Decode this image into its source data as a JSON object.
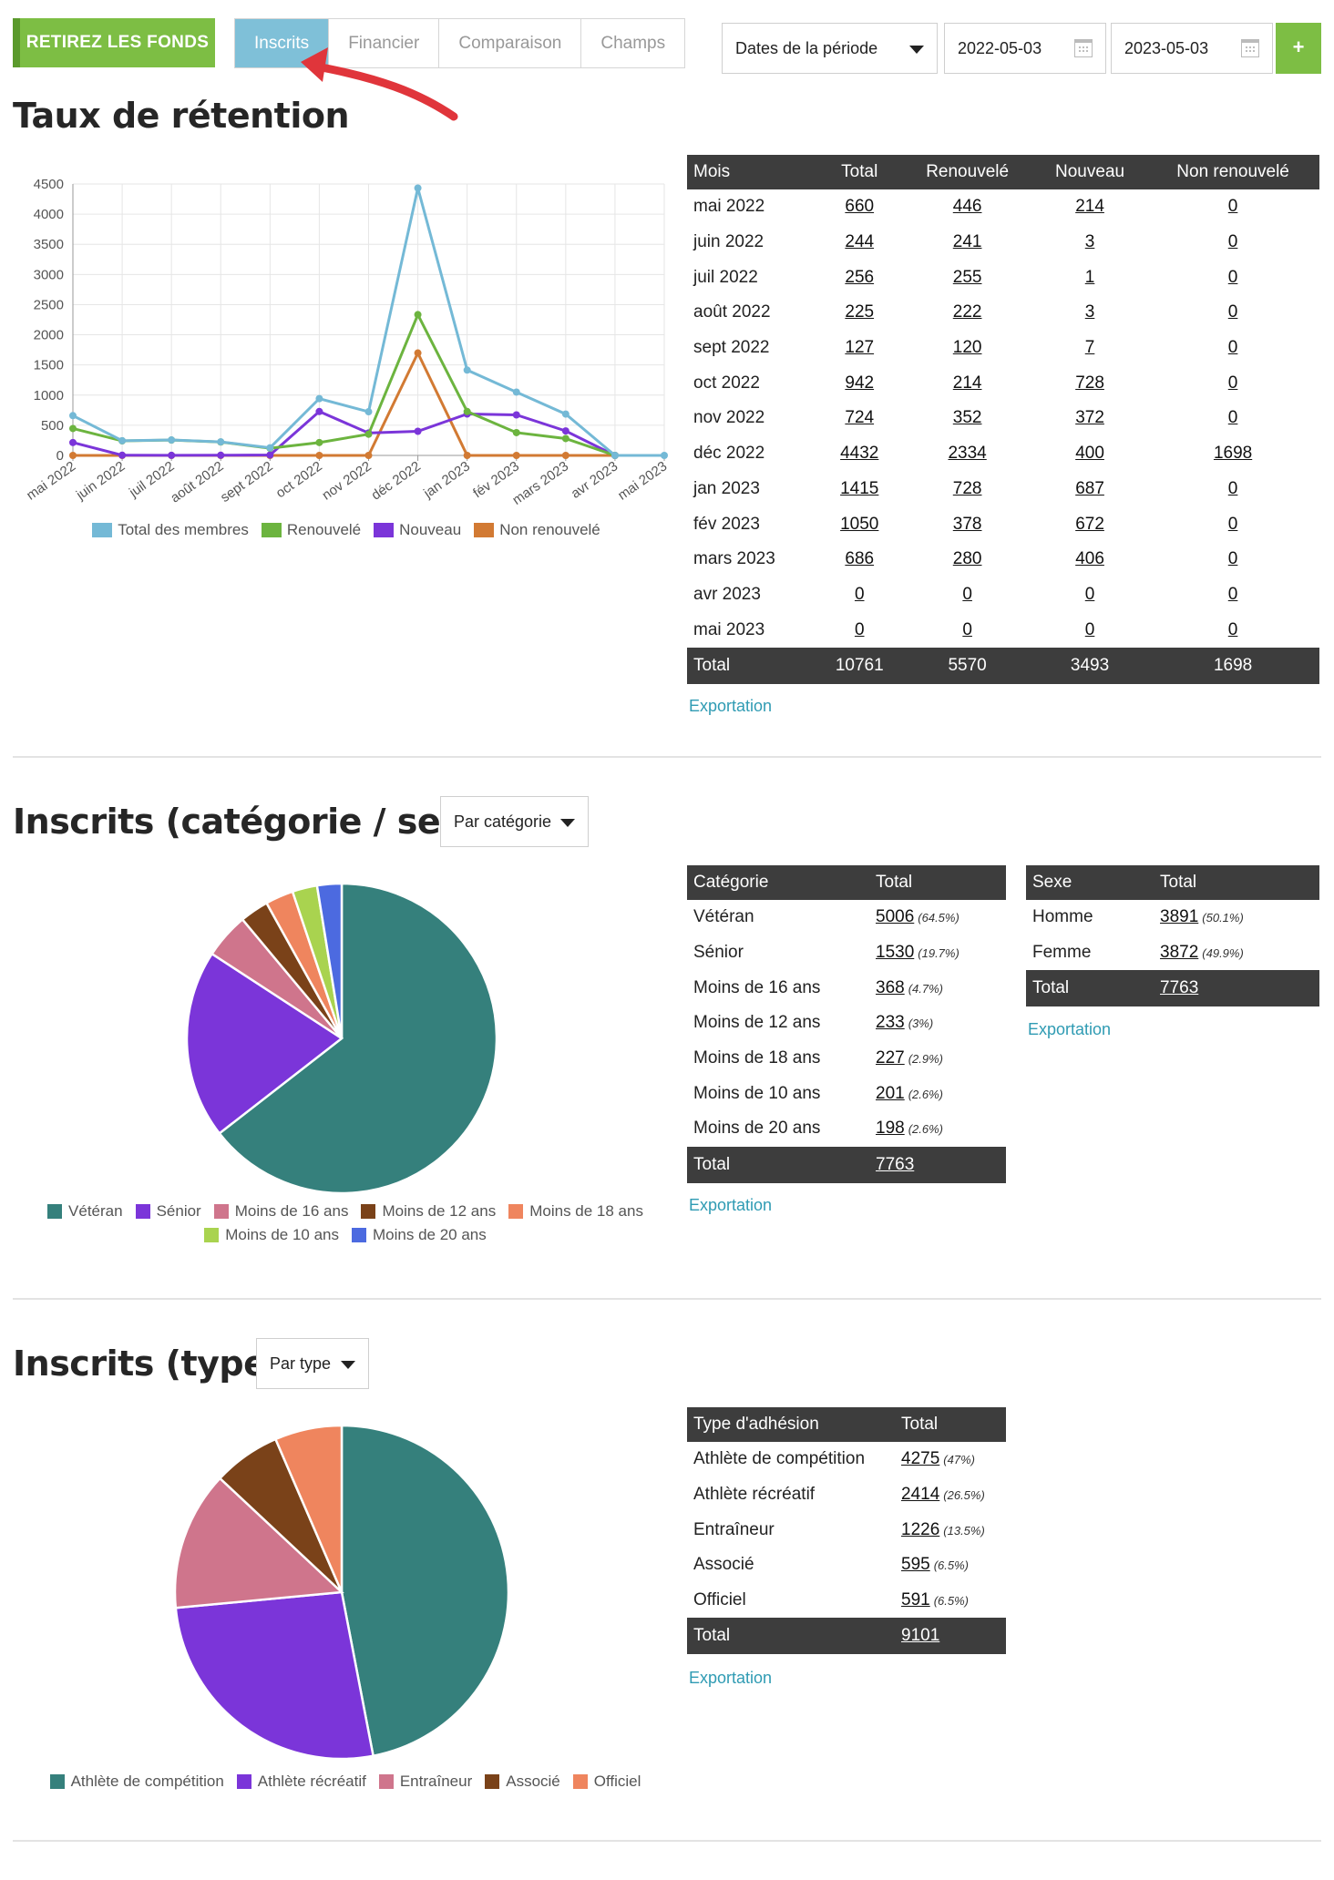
{
  "topbar": {
    "withdraw_label": "RETIREZ LES FONDS",
    "tabs": [
      {
        "label": "Inscrits",
        "active": true
      },
      {
        "label": "Financier",
        "active": false
      },
      {
        "label": "Comparaison",
        "active": false
      },
      {
        "label": "Champs",
        "active": false
      }
    ],
    "period_label": "Dates de la période",
    "date_start": "2022-05-03",
    "date_end": "2023-05-03",
    "add_label": "+"
  },
  "colors": {
    "green": "#7dbe44",
    "tab_active": "#7fc0d8",
    "header_dark": "#3d3d3d",
    "link": "#2f9bb3",
    "arrow": "#e0353b"
  },
  "retention": {
    "title": "Taux de rétention",
    "headers": [
      "Mois",
      "Total",
      "Renouvelé",
      "Nouveau",
      "Non renouvelé"
    ],
    "rows": [
      [
        "mai 2022",
        "660",
        "446",
        "214",
        "0"
      ],
      [
        "juin 2022",
        "244",
        "241",
        "3",
        "0"
      ],
      [
        "juil 2022",
        "256",
        "255",
        "1",
        "0"
      ],
      [
        "août 2022",
        "225",
        "222",
        "3",
        "0"
      ],
      [
        "sept 2022",
        "127",
        "120",
        "7",
        "0"
      ],
      [
        "oct 2022",
        "942",
        "214",
        "728",
        "0"
      ],
      [
        "nov 2022",
        "724",
        "352",
        "372",
        "0"
      ],
      [
        "déc 2022",
        "4432",
        "2334",
        "400",
        "1698"
      ],
      [
        "jan 2023",
        "1415",
        "728",
        "687",
        "0"
      ],
      [
        "fév 2023",
        "1050",
        "378",
        "672",
        "0"
      ],
      [
        "mars 2023",
        "686",
        "280",
        "406",
        "0"
      ],
      [
        "avr 2023",
        "0",
        "0",
        "0",
        "0"
      ],
      [
        "mai 2023",
        "0",
        "0",
        "0",
        "0"
      ]
    ],
    "total": [
      "Total",
      "10761",
      "5570",
      "3493",
      "1698"
    ],
    "export_label": "Exportation"
  },
  "category": {
    "title": "Inscrits (catégorie / sexe)",
    "dropdown": "Par catégorie",
    "headers": [
      "Catégorie",
      "Total"
    ],
    "rows": [
      {
        "label": "Vétéran",
        "value": "5006",
        "pct": "(64.5%)"
      },
      {
        "label": "Sénior",
        "value": "1530",
        "pct": "(19.7%)"
      },
      {
        "label": "Moins de 16 ans",
        "value": "368",
        "pct": "(4.7%)"
      },
      {
        "label": "Moins de 12 ans",
        "value": "233",
        "pct": "(3%)"
      },
      {
        "label": "Moins de 18 ans",
        "value": "227",
        "pct": "(2.9%)"
      },
      {
        "label": "Moins de 10 ans",
        "value": "201",
        "pct": "(2.6%)"
      },
      {
        "label": "Moins de 20 ans",
        "value": "198",
        "pct": "(2.6%)"
      }
    ],
    "total_label": "Total",
    "total_value": "7763",
    "export_label": "Exportation"
  },
  "sex": {
    "headers": [
      "Sexe",
      "Total"
    ],
    "rows": [
      {
        "label": "Homme",
        "value": "3891",
        "pct": "(50.1%)"
      },
      {
        "label": "Femme",
        "value": "3872",
        "pct": "(49.9%)"
      }
    ],
    "total_label": "Total",
    "total_value": "7763",
    "export_label": "Exportation"
  },
  "type": {
    "title": "Inscrits (type)",
    "dropdown": "Par type",
    "headers": [
      "Type d'adhésion",
      "Total"
    ],
    "rows": [
      {
        "label": "Athlète de compétition",
        "value": "4275",
        "pct": "(47%)"
      },
      {
        "label": "Athlète récréatif",
        "value": "2414",
        "pct": "(26.5%)"
      },
      {
        "label": "Entraîneur",
        "value": "1226",
        "pct": "(13.5%)"
      },
      {
        "label": "Associé",
        "value": "595",
        "pct": "(6.5%)"
      },
      {
        "label": "Officiel",
        "value": "591",
        "pct": "(6.5%)"
      }
    ],
    "total_label": "Total",
    "total_value": "9101",
    "export_label": "Exportation"
  },
  "chart_data": [
    {
      "type": "line",
      "title": "",
      "categories": [
        "mai 2022",
        "juin 2022",
        "juil 2022",
        "août 2022",
        "sept 2022",
        "oct 2022",
        "nov 2022",
        "déc 2022",
        "jan 2023",
        "fév 2023",
        "mars 2023",
        "avr 2023",
        "mai 2023"
      ],
      "series": [
        {
          "name": "Total des membres",
          "color": "#74b9d6",
          "values": [
            660,
            244,
            256,
            225,
            127,
            942,
            724,
            4432,
            1415,
            1050,
            686,
            0,
            0
          ]
        },
        {
          "name": "Renouvelé",
          "color": "#6cb43f",
          "values": [
            446,
            241,
            255,
            222,
            120,
            214,
            352,
            2334,
            728,
            378,
            280,
            0,
            null
          ]
        },
        {
          "name": "Nouveau",
          "color": "#7b35d9",
          "values": [
            214,
            3,
            1,
            3,
            7,
            728,
            372,
            400,
            687,
            672,
            406,
            0,
            null
          ]
        },
        {
          "name": "Non renouvelé",
          "color": "#d27a33",
          "values": [
            0,
            0,
            0,
            0,
            0,
            0,
            0,
            1698,
            0,
            0,
            0,
            0,
            null
          ]
        }
      ],
      "yticks": [
        "0",
        "500",
        "1000",
        "1500",
        "2000",
        "2500",
        "3000",
        "3500",
        "4000",
        "4500"
      ],
      "ylim": [
        0,
        4500
      ],
      "grid": true,
      "legend": "bottom"
    },
    {
      "type": "pie",
      "title": "Inscrits (catégorie / sexe)",
      "labels": [
        "Vétéran",
        "Sénior",
        "Moins de 16 ans",
        "Moins de 12 ans",
        "Moins de 18 ans",
        "Moins de 10 ans",
        "Moins de 20 ans"
      ],
      "values": [
        5006,
        1530,
        368,
        233,
        227,
        201,
        198
      ],
      "colors": [
        "#35807c",
        "#7b35d9",
        "#cf758c",
        "#7a4219",
        "#ef855e",
        "#a9d34f",
        "#4c6ae0"
      ],
      "legend": "bottom"
    },
    {
      "type": "pie",
      "title": "Inscrits (type)",
      "labels": [
        "Athlète de compétition",
        "Athlète récréatif",
        "Entraîneur",
        "Associé",
        "Officiel"
      ],
      "values": [
        4275,
        2414,
        1226,
        595,
        591
      ],
      "colors": [
        "#35807c",
        "#7b35d9",
        "#cf758c",
        "#7a4219",
        "#ef855e"
      ],
      "legend": "bottom"
    }
  ]
}
